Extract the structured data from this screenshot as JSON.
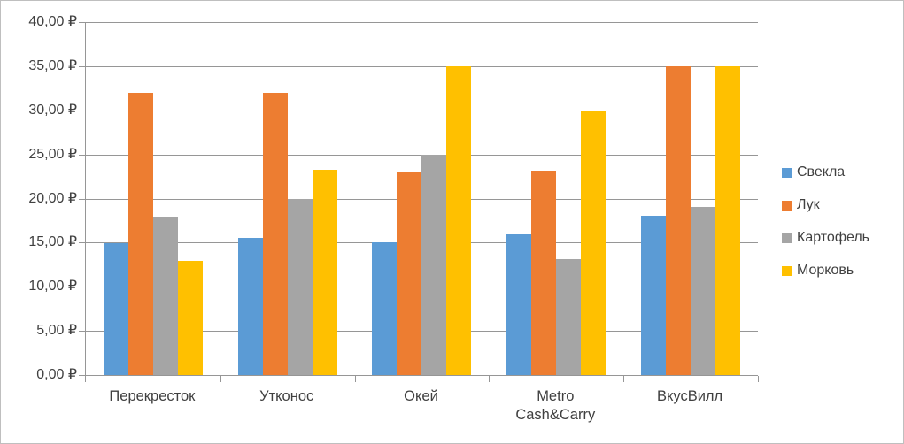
{
  "chart_data": {
    "type": "bar",
    "title": "",
    "xlabel": "",
    "ylabel": "",
    "categories": [
      "Перекресток",
      "Утконос",
      "Окей",
      "Metro Cash&Carry",
      "ВкусВилл"
    ],
    "series": [
      {
        "name": "Свекла",
        "color": "#5B9BD5",
        "values": [
          14.9,
          15.5,
          15.0,
          15.9,
          18.0
        ]
      },
      {
        "name": "Лук",
        "color": "#ED7D31",
        "values": [
          32.0,
          32.0,
          23.0,
          23.2,
          35.0
        ]
      },
      {
        "name": "Картофель",
        "color": "#A5A5A5",
        "values": [
          17.9,
          20.0,
          25.0,
          13.1,
          19.0
        ]
      },
      {
        "name": "Морковь",
        "color": "#FFC000",
        "values": [
          12.9,
          23.3,
          35.0,
          30.0,
          35.0
        ]
      }
    ],
    "y_axis": {
      "min": 0,
      "max": 40,
      "step": 5,
      "currency_symbol": "₽",
      "tick_labels_top_to_bottom": [
        "40,00 ₽",
        "35,00 ₽",
        "30,00 ₽",
        "25,00 ₽",
        "20,00 ₽",
        "15,00 ₽",
        "10,00 ₽",
        "5,00 ₽",
        "0,00 ₽"
      ]
    },
    "legend": {
      "position": "right",
      "entries": [
        "Свекла",
        "Лук",
        "Картофель",
        "Морковь"
      ]
    },
    "grid": true
  },
  "colors": {
    "axis": "#969696",
    "gridline": "#969696",
    "border": "#bfbfbf",
    "text": "#404040",
    "background": "#ffffff"
  }
}
